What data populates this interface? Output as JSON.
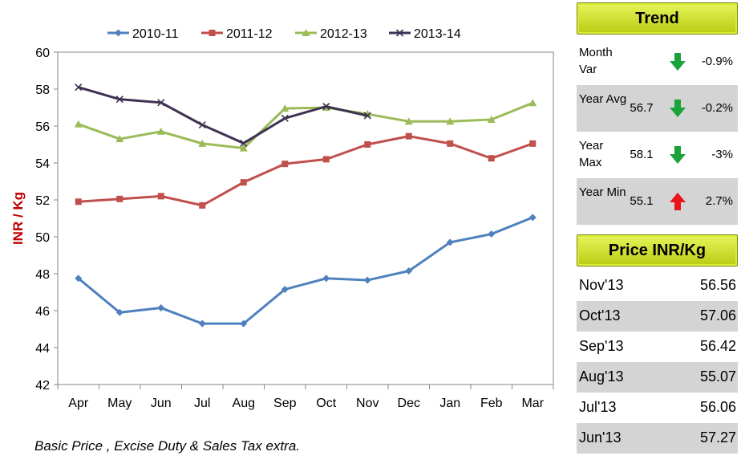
{
  "chart_data": {
    "type": "line",
    "categories": [
      "Apr",
      "May",
      "Jun",
      "Jul",
      "Aug",
      "Sep",
      "Oct",
      "Nov",
      "Dec",
      "Jan",
      "Feb",
      "Mar"
    ],
    "ylabel": "INR / Kg",
    "ylim": [
      42,
      60
    ],
    "yticks": [
      "42",
      "44",
      "46",
      "48",
      "50",
      "52",
      "54",
      "56",
      "58",
      "60"
    ],
    "legend_position": "top",
    "series": [
      {
        "name": "2010-11",
        "color": "#4f81bd",
        "marker": "diamond",
        "values": [
          47.75,
          45.9,
          46.15,
          45.3,
          45.3,
          47.15,
          47.75,
          47.65,
          48.15,
          49.7,
          50.15,
          51.05
        ]
      },
      {
        "name": "2011-12",
        "color": "#c0504d",
        "marker": "square",
        "values": [
          51.9,
          52.05,
          52.2,
          51.7,
          52.95,
          53.95,
          54.2,
          55.0,
          55.45,
          55.05,
          54.25,
          55.05
        ]
      },
      {
        "name": "2012-13",
        "color": "#9bbb59",
        "marker": "triangle",
        "values": [
          56.1,
          55.3,
          55.7,
          55.05,
          54.8,
          56.95,
          57.0,
          56.65,
          56.25,
          56.25,
          56.35,
          57.25
        ]
      },
      {
        "name": "2013-14",
        "color": "#3f3151",
        "marker": "x",
        "values": [
          58.1,
          57.45,
          57.27,
          56.06,
          55.07,
          56.42,
          57.06,
          56.56,
          null,
          null,
          null,
          null
        ]
      }
    ]
  },
  "footnote": "Basic Price , Excise Duty & Sales Tax  extra.",
  "trend": {
    "title": "Trend",
    "rows": [
      {
        "label": "Month Var",
        "value": "",
        "direction": "down",
        "pct": "-0.9%"
      },
      {
        "label": "Year Avg",
        "value": "56.7",
        "direction": "down",
        "pct": "-0.2%"
      },
      {
        "label": "Year Max",
        "value": "58.1",
        "direction": "down",
        "pct": "-3%"
      },
      {
        "label": "Year Min",
        "value": "55.1",
        "direction": "up",
        "pct": "2.7%"
      }
    ]
  },
  "prices": {
    "title": "Price  INR/Kg",
    "rows": [
      {
        "month": "Nov'13",
        "price": "56.56"
      },
      {
        "month": "Oct'13",
        "price": "57.06"
      },
      {
        "month": "Sep'13",
        "price": "56.42"
      },
      {
        "month": "Aug'13",
        "price": "55.07"
      },
      {
        "month": "Jul'13",
        "price": "56.06"
      },
      {
        "month": "Jun'13",
        "price": "57.27"
      }
    ]
  },
  "colors": {
    "arrow_down": "#1aa33a",
    "arrow_up": "#e8151b",
    "ylabel": "#c00000",
    "panel_title": "#c9dc1e",
    "row_shade": "#d4d4d4"
  }
}
